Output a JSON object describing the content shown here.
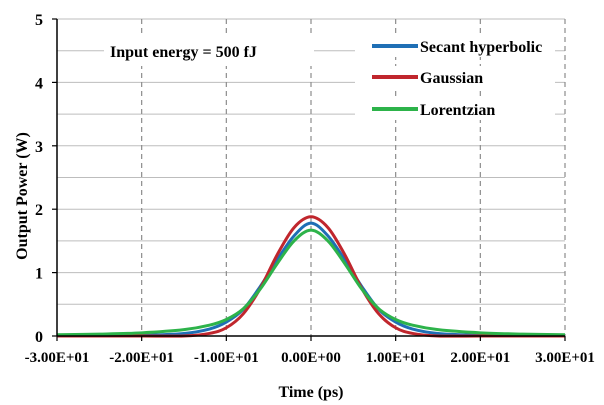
{
  "chart_data": {
    "type": "line",
    "xlabel": "Time (ps)",
    "ylabel": "Output Power (W)",
    "annotation": "Input energy = 500 fJ",
    "xlim": [
      -30,
      30
    ],
    "ylim": [
      0,
      5
    ],
    "x_ticks": [
      -30,
      -20,
      -10,
      0,
      10,
      20,
      30
    ],
    "x_tick_labels": [
      "-3.00E+01",
      "-2.00E+01",
      "-1.00E+01",
      "0.00E+00",
      "1.00E+01",
      "2.00E+01",
      "3.00E+01"
    ],
    "y_ticks": [
      0,
      1,
      2,
      3,
      4,
      5
    ],
    "y_tick_labels": [
      "0",
      "1",
      "2",
      "3",
      "4",
      "5"
    ],
    "grid": {
      "horizontal_minor_step": 0.5,
      "vertical": "dashed"
    },
    "legend_position": "top-right",
    "series": [
      {
        "name": "Secant hyperbolic",
        "color": "#1f6fb5",
        "x": [
          -30,
          -25,
          -20,
          -15,
          -12,
          -10,
          -8,
          -6,
          -4,
          -2,
          0,
          2,
          4,
          6,
          8,
          10,
          12,
          15,
          20,
          25,
          30
        ],
        "values": [
          0.0,
          0.0,
          0.01,
          0.04,
          0.11,
          0.22,
          0.42,
          0.78,
          1.2,
          1.58,
          1.78,
          1.58,
          1.2,
          0.78,
          0.42,
          0.22,
          0.11,
          0.04,
          0.01,
          0.0,
          0.0
        ]
      },
      {
        "name": "Gaussian",
        "color": "#c0262d",
        "x": [
          -30,
          -25,
          -20,
          -15,
          -12,
          -10,
          -8,
          -6,
          -4,
          -2,
          0,
          2,
          4,
          6,
          8,
          10,
          12,
          15,
          20,
          25,
          30
        ],
        "values": [
          0.0,
          0.0,
          0.0,
          0.0,
          0.04,
          0.13,
          0.35,
          0.75,
          1.28,
          1.71,
          1.88,
          1.71,
          1.28,
          0.75,
          0.35,
          0.13,
          0.04,
          0.0,
          0.0,
          0.0,
          0.0
        ]
      },
      {
        "name": "Lorentzian",
        "color": "#2db34a",
        "x": [
          -30,
          -25,
          -20,
          -15,
          -12,
          -10,
          -8,
          -6,
          -4,
          -2,
          0,
          2,
          4,
          6,
          8,
          10,
          12,
          15,
          20,
          25,
          30
        ],
        "values": [
          0.02,
          0.03,
          0.05,
          0.1,
          0.17,
          0.26,
          0.43,
          0.74,
          1.14,
          1.5,
          1.67,
          1.5,
          1.14,
          0.74,
          0.43,
          0.26,
          0.17,
          0.1,
          0.05,
          0.03,
          0.02
        ]
      }
    ]
  }
}
